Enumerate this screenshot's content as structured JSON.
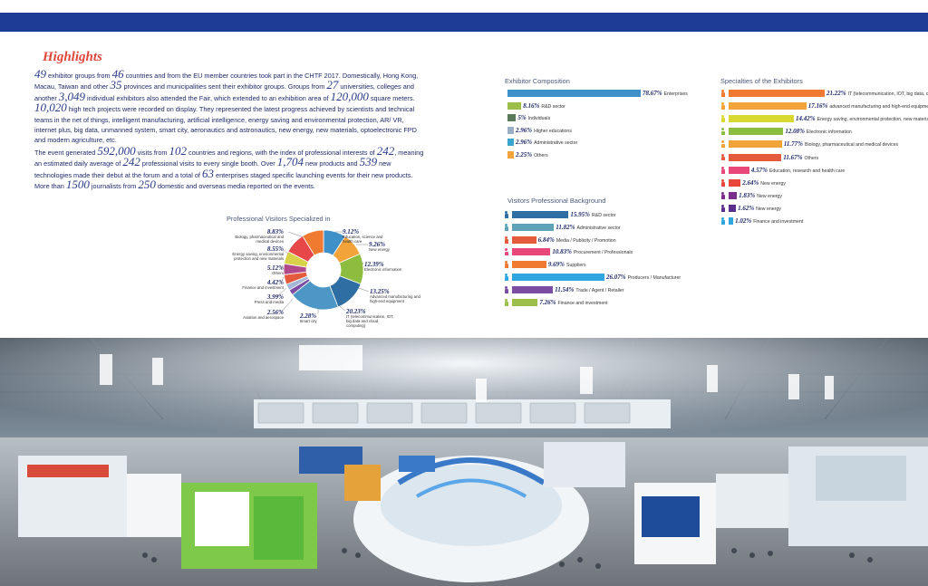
{
  "highlights": {
    "title": "Highlights",
    "p1": [
      {
        "n": "49"
      },
      {
        "t": " exhibitor groups from "
      },
      {
        "n": "46"
      },
      {
        "t": " countries and from the EU member countries took part in the CHTF 2017. Domestically, Hong Kong, Macau, Taiwan and other "
      },
      {
        "n": "35"
      },
      {
        "t": " provinces and municipalities sent their exhibitor groups. Groups from "
      },
      {
        "n": "27"
      },
      {
        "t": " universities, colleges and another "
      },
      {
        "n": "3,049"
      },
      {
        "t": " individual exhibitors also attended the Fair, which extended to an exhibition area of "
      },
      {
        "n": "120,000"
      },
      {
        "t": " square meters. "
      },
      {
        "n": "10,020"
      },
      {
        "t": " high tech projects were recorded on display. They represented the latest progress achieved by scientists and technical teams in the net of things, intelligent manufacturing, artificial intelligence, energy saving and environmental protection, AR/ VR, internet plus, big data, unmanned system, smart city, aeronautics and astronautics, new energy, new materials, optoelectronic FPD and modern agriculture, etc."
      }
    ],
    "p2": [
      {
        "t": "The event generated "
      },
      {
        "n": "592,000"
      },
      {
        "t": " visits from "
      },
      {
        "n": "102"
      },
      {
        "t": " countries and regions, with the index of professional interests of "
      },
      {
        "n": "242"
      },
      {
        "t": ", meaning an estimated daily average of "
      },
      {
        "n": "242"
      },
      {
        "t": " professional visits to every single booth. Over "
      },
      {
        "n": "1,704"
      },
      {
        "t": " new products and "
      },
      {
        "n": "539"
      },
      {
        "t": " new technologies made their debut at the forum and a total of "
      },
      {
        "n": "63"
      },
      {
        "t": " enterprises staged specific launching events for their new products. More than "
      },
      {
        "n": "1500"
      },
      {
        "t": " journalists from "
      },
      {
        "n": "250"
      },
      {
        "t": " domestic and overseas media reported on the events."
      }
    ]
  },
  "chart_data": [
    {
      "type": "pie",
      "title": "Professional Visitors Specialized in",
      "slices": [
        {
          "value": "9.12%",
          "label": "Education, science and health care",
          "color": "#3f8fc8"
        },
        {
          "value": "9.26%",
          "label": "New energy",
          "color": "#f2a33a"
        },
        {
          "value": "12.39%",
          "label": "Electronic information",
          "color": "#8cbd3f"
        },
        {
          "value": "13.25%",
          "label": "Advanced manufacturing and high-end equipment",
          "color": "#2e6ea3"
        },
        {
          "value": "20.23%",
          "label": "IT (telecommunication, IOT, big data and cloud computing)",
          "color": "#4d97c6"
        },
        {
          "value": "2.28%",
          "label": "Smart city",
          "color": "#7b4ea3"
        },
        {
          "value": "2.56%",
          "label": "Aviation and aerospace",
          "color": "#a3b7d6"
        },
        {
          "value": "3.99%",
          "label": "Press and media",
          "color": "#e35a3c"
        },
        {
          "value": "4.42%",
          "label": "Finance and investment",
          "color": "#b04a8c"
        },
        {
          "value": "5.12%",
          "label": "Others",
          "color": "#d8d24a"
        },
        {
          "value": "8.55%",
          "label": "Energy saving, environmental protection and new materials",
          "color": "#e8474a"
        },
        {
          "value": "8.83%",
          "label": "Biology, pharmaceutical and medical devices",
          "color": "#f07a2f"
        }
      ]
    },
    {
      "type": "bar",
      "title": "Exhibitor Composition",
      "values": [
        78.67,
        8.16,
        5,
        2.96,
        2.96,
        2.25
      ],
      "value_labels": [
        "78.67%",
        "8.16%",
        "5%",
        "2.96%",
        "2.96%",
        "2.25%"
      ],
      "categories": [
        "Enterprises",
        "R&D sector",
        "Individuals",
        "Higher educations",
        "Administrative sector",
        "Others"
      ],
      "colors": [
        "#3f8fc8",
        "#9bbf4a",
        "#5a7a5a",
        "#9bb0c8",
        "#3aa6d0",
        "#f2a33a"
      ]
    },
    {
      "type": "bar",
      "title": "Visitors Professional Background",
      "values": [
        15.95,
        11.82,
        6.84,
        10.83,
        9.69,
        26.07,
        11.54,
        7.26
      ],
      "value_labels": [
        "15.95%",
        "11.82%",
        "6.84%",
        "10.83%",
        "9.69%",
        "26.07%",
        "11.54%",
        "7.26%"
      ],
      "categories": [
        "R&D sector",
        "Administrative sector",
        "Media / Publicity / Promotion",
        "Procurement / Professionals",
        "Suppliers",
        "Producers / Manufacturer",
        "Trade / Agent / Retailer",
        "Finance and investment"
      ],
      "colors": [
        "#2e6ea3",
        "#5ea3b8",
        "#e35a3c",
        "#e8477a",
        "#f07a2f",
        "#2fa6e0",
        "#7b4ea3",
        "#9bbf4a"
      ]
    },
    {
      "type": "bar",
      "title": "Specialties of the Exhibitors",
      "values": [
        21.22,
        17.16,
        14.42,
        12.08,
        11.77,
        11.67,
        4.57,
        2.64,
        1.83,
        1.62,
        1.02
      ],
      "value_labels": [
        "21.22%",
        "17.16%",
        "14.42%",
        "12.08%",
        "11.77%",
        "11.67%",
        "4.57%",
        "2.64%",
        "1.83%",
        "1.62%",
        "1.02%"
      ],
      "categories": [
        "IT (telecommunication, IOT, big data, cloud computing)",
        "advanced manufacturing and high-end equipment",
        "Energy saving, environmental protection, new materials",
        "Electronic information",
        "Biology, pharmaceutical and medical devices",
        "Others",
        "Education, research and health care",
        "New energy",
        "New energy",
        "New energy",
        "Finance and investment"
      ],
      "colors": [
        "#f07a2f",
        "#f2a33a",
        "#d8d830",
        "#8cbd3f",
        "#f2a33a",
        "#e35a3c",
        "#e8477a",
        "#e8473a",
        "#7b2e8c",
        "#5a2e8c",
        "#2fa6e0"
      ]
    }
  ]
}
